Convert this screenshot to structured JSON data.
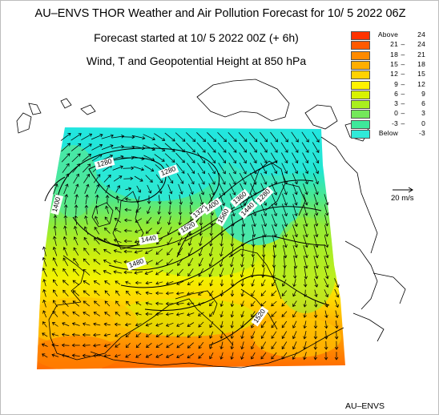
{
  "header": {
    "title": "AU–ENVS THOR Weather and Air Pollution Forecast for 10/ 5 2022  06Z",
    "subtitle_start": "Forecast started at 10/ 5 2022  00Z (+ 6h)",
    "subtitle_variables": "Wind, T and Geopotential Height at 850 hPa"
  },
  "legend": {
    "items": [
      {
        "low": "Above",
        "sep": "",
        "high": "24",
        "color": "#ff3300"
      },
      {
        "low": "21",
        "sep": "–",
        "high": "24",
        "color": "#ff5a00"
      },
      {
        "low": "18",
        "sep": "–",
        "high": "21",
        "color": "#ff8a00"
      },
      {
        "low": "15",
        "sep": "–",
        "high": "18",
        "color": "#ffae00"
      },
      {
        "low": "12",
        "sep": "–",
        "high": "15",
        "color": "#ffd200"
      },
      {
        "low": "9",
        "sep": "–",
        "high": "12",
        "color": "#fff200"
      },
      {
        "low": "6",
        "sep": "–",
        "high": "9",
        "color": "#d8f200"
      },
      {
        "low": "3",
        "sep": "–",
        "high": "6",
        "color": "#a9ee1e"
      },
      {
        "low": "0",
        "sep": "–",
        "high": "3",
        "color": "#74e85a"
      },
      {
        "low": "-3",
        "sep": "–",
        "high": "0",
        "color": "#3ee89a"
      },
      {
        "low": "Below",
        "sep": "",
        "high": "-3",
        "color": "#30ead8"
      }
    ]
  },
  "scale": {
    "label": "20 m/s"
  },
  "contour_labels": [
    "1280",
    "1280",
    "1280",
    "1320",
    "1360",
    "1400",
    "1440",
    "1480",
    "1520",
    "1560",
    "1520",
    "1400",
    "1440"
  ],
  "footer": {
    "text": "AU–ENVS"
  },
  "colors": {
    "coast": "#000000",
    "contour": "#000000"
  }
}
